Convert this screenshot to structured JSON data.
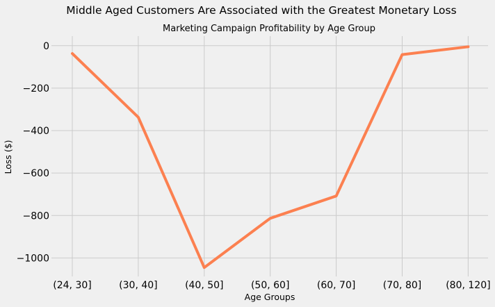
{
  "chart_data": {
    "type": "line",
    "suptitle": "Middle Aged Customers Are Associated with the Greatest Monetary Loss",
    "title": "Marketing Campaign Profitability by Age Group",
    "xlabel": "Age Groups",
    "ylabel": "Loss ($)",
    "categories": [
      "(24, 30]",
      "(30, 40]",
      "(40, 50]",
      "(50, 60]",
      "(60, 70]",
      "(70, 80]",
      "(80, 120]"
    ],
    "series": [
      {
        "values": [
          -37,
          -337,
          -1045,
          -813,
          -708,
          -42,
          -5
        ],
        "color": "#fc8050"
      }
    ],
    "yticks": [
      0,
      -200,
      -400,
      -600,
      -800,
      -1000
    ],
    "ytick_labels": [
      "0",
      "−200",
      "−400",
      "−600",
      "−800",
      "−1000"
    ],
    "ylim": [
      -1087,
      45
    ],
    "grid": true,
    "background_color": "#f0f0f0",
    "grid_color": "#cbcbcb"
  }
}
